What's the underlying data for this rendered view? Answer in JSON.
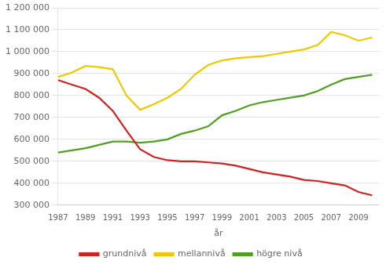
{
  "chart_data": {
    "type": "line",
    "x_label": "år",
    "x": [
      1987,
      1988,
      1989,
      1990,
      1991,
      1992,
      1993,
      1994,
      1995,
      1996,
      1997,
      1998,
      1999,
      2000,
      2001,
      2002,
      2003,
      2004,
      2005,
      2006,
      2007,
      2008,
      2009,
      2010
    ],
    "series": [
      {
        "name": "grundnivå",
        "color": "#d42020",
        "values": [
          870000,
          850000,
          830000,
          790000,
          730000,
          640000,
          555000,
          520000,
          505000,
          500000,
          500000,
          495000,
          490000,
          480000,
          465000,
          450000,
          440000,
          430000,
          415000,
          410000,
          400000,
          390000,
          360000,
          345000
        ]
      },
      {
        "name": "mellannivå",
        "color": "#f0c800",
        "values": [
          885000,
          905000,
          935000,
          930000,
          920000,
          800000,
          735000,
          760000,
          790000,
          830000,
          895000,
          940000,
          960000,
          970000,
          975000,
          980000,
          990000,
          1000000,
          1010000,
          1030000,
          1090000,
          1075000,
          1050000,
          1065000
        ]
      },
      {
        "name": "högre nivå",
        "color": "#50a020",
        "values": [
          540000,
          550000,
          560000,
          575000,
          590000,
          590000,
          585000,
          590000,
          600000,
          625000,
          640000,
          660000,
          710000,
          730000,
          755000,
          770000,
          780000,
          790000,
          800000,
          820000,
          850000,
          875000,
          885000,
          895000
        ]
      }
    ],
    "xlim": [
      1987,
      2010.5
    ],
    "xticks": [
      1987,
      1989,
      1991,
      1993,
      1995,
      1997,
      1999,
      2001,
      2003,
      2005,
      2007,
      2009
    ],
    "ylim": [
      300000,
      1200000
    ],
    "yticks": [
      {
        "value": 300000,
        "label": "300 000"
      },
      {
        "value": 400000,
        "label": "400 000"
      },
      {
        "value": 500000,
        "label": "500 000"
      },
      {
        "value": 600000,
        "label": "600 000"
      },
      {
        "value": 700000,
        "label": "700 000"
      },
      {
        "value": 800000,
        "label": "800 000"
      },
      {
        "value": 900000,
        "label": "900 000"
      },
      {
        "value": 1000000,
        "label": "1 000 000"
      },
      {
        "value": 1100000,
        "label": "1 100 000"
      },
      {
        "value": 1200000,
        "label": "1 200 000"
      }
    ],
    "grid": "y",
    "legend": "bottom"
  }
}
